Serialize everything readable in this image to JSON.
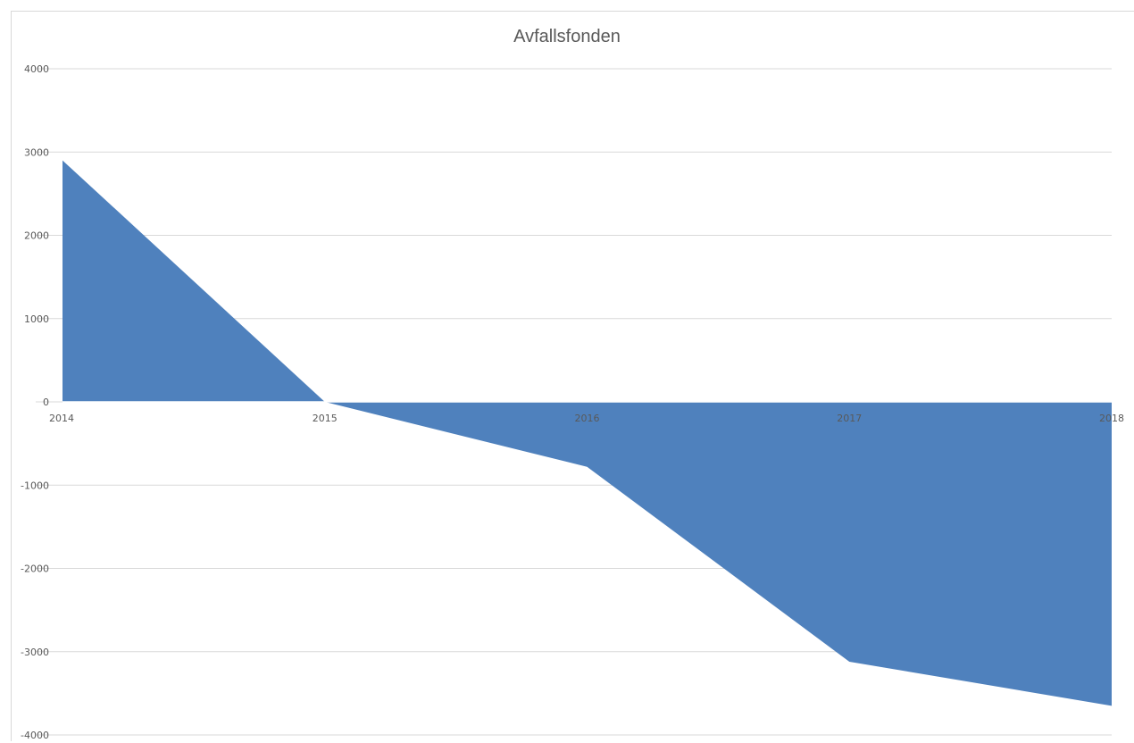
{
  "chart_data": {
    "type": "area",
    "title": "Avfallsfonden",
    "xlabel": "",
    "ylabel": "",
    "categories": [
      "2014",
      "2015",
      "2016",
      "2017",
      "2018"
    ],
    "series": [
      {
        "values": [
          2900,
          0,
          -780,
          -3120,
          -3650
        ]
      }
    ],
    "ylim": [
      -4000,
      4000
    ],
    "yticks": [
      4000,
      3000,
      2000,
      1000,
      0,
      -1000,
      -2000,
      -3000,
      -4000
    ],
    "grid": true,
    "legend": "none",
    "colors": {
      "fill": "#4f81bd",
      "grid": "#d9d9d9",
      "text": "#595959",
      "baseline": "#ffffff"
    }
  }
}
